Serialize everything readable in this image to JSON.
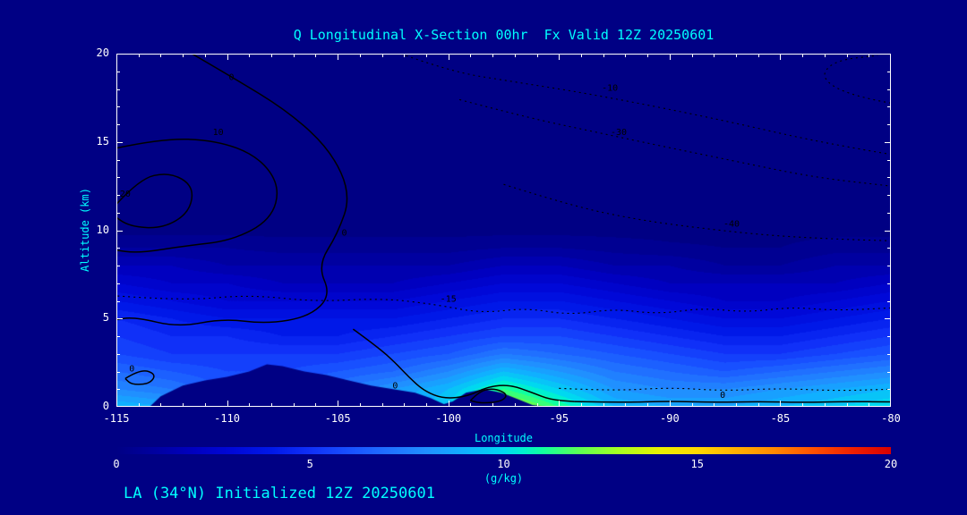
{
  "colors": {
    "background": "#000084",
    "accent_text": "#00ffff",
    "tick_text": "#ffffff",
    "axis": "#ffffff",
    "contour": "#000000"
  },
  "footer": {
    "text": "LA (34°N) Initialized 12Z 20250601"
  },
  "chart_data": {
    "type": "heatmap",
    "title": "Q Longitudinal X-Section 00hr  Fx Valid 12Z 20250601",
    "xlabel": "Longitude",
    "ylabel": "Altitude (km)",
    "units": "(g/kg)",
    "xlim": [
      -115,
      -80
    ],
    "ylim": [
      0,
      20
    ],
    "x_ticks": [
      -115,
      -110,
      -105,
      -100,
      -95,
      -90,
      -85,
      -80
    ],
    "x_tick_labels": [
      "-115",
      "-110",
      "-105",
      "-100",
      "-95",
      "-90",
      "-85",
      "-80"
    ],
    "y_ticks": [
      0,
      5,
      10,
      15,
      20
    ],
    "y_tick_labels": [
      "0",
      "5",
      "10",
      "15",
      "20"
    ],
    "colorbar_ticks": [
      0,
      5,
      10,
      15,
      20
    ],
    "colorbar_tick_labels": [
      "0",
      "5",
      "10",
      "15",
      "20"
    ],
    "quantize_step": 0.5,
    "colormap": {
      "min": 0,
      "max": 20,
      "stops": [
        [
          0,
          "#000084"
        ],
        [
          1,
          "#0000a0"
        ],
        [
          2,
          "#0000c0"
        ],
        [
          3,
          "#0008d8"
        ],
        [
          4,
          "#0018e8"
        ],
        [
          5,
          "#1030f8"
        ],
        [
          6,
          "#1850ff"
        ],
        [
          7,
          "#2070ff"
        ],
        [
          8,
          "#2090ff"
        ],
        [
          9,
          "#10b0ff"
        ],
        [
          10,
          "#00d8f0"
        ],
        [
          10.5,
          "#00f0d0"
        ],
        [
          11,
          "#10ffa0"
        ],
        [
          12,
          "#60ff50"
        ],
        [
          13,
          "#a8ff20"
        ],
        [
          14,
          "#e8f000"
        ],
        [
          15,
          "#ffd800"
        ],
        [
          16,
          "#ffb000"
        ],
        [
          17,
          "#ff8800"
        ],
        [
          18,
          "#ff5000"
        ],
        [
          19,
          "#f02000"
        ],
        [
          20,
          "#d80000"
        ]
      ]
    },
    "grid_lons": [
      -115,
      -112.5,
      -110,
      -107.5,
      -105,
      -102.5,
      -100,
      -97.5,
      -95,
      -92.5,
      -90,
      -87.5,
      -85,
      -82.5,
      -80
    ],
    "grid_alts": [
      0,
      1,
      2,
      3,
      4,
      5,
      6,
      7,
      8,
      9,
      10,
      12,
      20
    ],
    "values": [
      [
        9.5,
        9.0,
        7.5,
        7.5,
        8.0,
        9.0,
        10.0,
        13.5,
        11.5,
        9.5,
        9.0,
        9.0,
        9.5,
        10.0,
        10.5
      ],
      [
        8.0,
        7.5,
        6.5,
        6.5,
        7.5,
        8.5,
        9.5,
        11.5,
        10.0,
        8.5,
        8.0,
        8.0,
        8.5,
        9.0,
        9.5
      ],
      [
        7.0,
        6.5,
        6.0,
        6.0,
        6.5,
        7.0,
        8.0,
        9.5,
        8.5,
        7.5,
        7.0,
        6.5,
        7.0,
        7.5,
        8.0
      ],
      [
        6.0,
        5.5,
        5.5,
        5.5,
        5.5,
        6.0,
        6.5,
        7.5,
        7.0,
        6.5,
        6.0,
        5.5,
        5.5,
        6.0,
        6.5
      ],
      [
        5.5,
        5.0,
        5.0,
        4.5,
        4.5,
        5.0,
        5.5,
        6.0,
        6.0,
        5.5,
        5.0,
        4.5,
        4.5,
        5.0,
        5.5
      ],
      [
        5.0,
        4.5,
        4.0,
        4.0,
        4.0,
        4.0,
        4.5,
        5.0,
        5.0,
        4.5,
        4.0,
        3.5,
        3.5,
        4.0,
        4.5
      ],
      [
        4.0,
        3.5,
        3.0,
        3.0,
        3.0,
        3.0,
        3.5,
        4.0,
        4.0,
        3.5,
        3.0,
        2.5,
        2.5,
        3.0,
        3.5
      ],
      [
        3.0,
        2.5,
        2.5,
        2.0,
        2.0,
        2.0,
        2.5,
        3.0,
        3.0,
        2.5,
        2.0,
        2.0,
        2.0,
        2.0,
        2.5
      ],
      [
        2.0,
        2.0,
        1.5,
        1.5,
        1.5,
        1.5,
        1.5,
        2.0,
        2.0,
        1.5,
        1.5,
        1.0,
        1.0,
        1.5,
        1.5
      ],
      [
        1.0,
        1.0,
        1.0,
        0.8,
        0.8,
        0.8,
        0.8,
        1.0,
        1.0,
        0.8,
        0.6,
        0.5,
        0.5,
        0.8,
        0.8
      ],
      [
        0.3,
        0.3,
        0.3,
        0.3,
        0.3,
        0.3,
        0.3,
        0.3,
        0.3,
        0.3,
        0.3,
        0.3,
        0.3,
        0.3,
        0.3
      ],
      [
        0,
        0,
        0,
        0,
        0,
        0,
        0,
        0,
        0,
        0,
        0,
        0,
        0,
        0,
        0
      ],
      [
        0,
        0,
        0,
        0,
        0,
        0,
        0,
        0,
        0,
        0,
        0,
        0,
        0,
        0,
        0
      ]
    ],
    "terrain": [
      [
        -115,
        0
      ],
      [
        -113.5,
        0
      ],
      [
        -113,
        0.6
      ],
      [
        -112,
        1.2
      ],
      [
        -111,
        1.5
      ],
      [
        -110,
        1.7
      ],
      [
        -109,
        2.0
      ],
      [
        -108.2,
        2.4
      ],
      [
        -107.5,
        2.3
      ],
      [
        -106.5,
        2.0
      ],
      [
        -105.5,
        1.8
      ],
      [
        -104.5,
        1.5
      ],
      [
        -103.5,
        1.2
      ],
      [
        -102.5,
        1.0
      ],
      [
        -101.5,
        0.8
      ],
      [
        -100.8,
        0.5
      ],
      [
        -100.2,
        0.15
      ],
      [
        -99.8,
        0.3
      ],
      [
        -99.2,
        0.8
      ],
      [
        -98.4,
        1.0
      ],
      [
        -97.6,
        0.8
      ],
      [
        -96.8,
        0.4
      ],
      [
        -96.2,
        0.1
      ],
      [
        -95.5,
        0
      ],
      [
        -80,
        0
      ]
    ],
    "contours": [
      {
        "label": "0",
        "style": "solid",
        "label_positions": [
          [
            -109.8,
            18.5
          ],
          [
            -104.7,
            9.7
          ]
        ],
        "points": [
          [
            -112.0,
            20.3
          ],
          [
            -109.8,
            18.7
          ],
          [
            -107.2,
            16.7
          ],
          [
            -105.3,
            14.5
          ],
          [
            -104.4,
            12.0
          ],
          [
            -105.0,
            9.8
          ],
          [
            -105.9,
            8.0
          ],
          [
            -105.3,
            6.3
          ],
          [
            -106.3,
            5.1
          ],
          [
            -108.2,
            4.7
          ],
          [
            -110.2,
            5.0
          ],
          [
            -112.2,
            4.5
          ],
          [
            -114.2,
            5.1
          ],
          [
            -115.2,
            4.9
          ]
        ]
      },
      {
        "label": "10",
        "style": "solid",
        "label_positions": [
          [
            -110.4,
            15.4
          ]
        ],
        "points": [
          [
            -115.2,
            14.6
          ],
          [
            -113.0,
            15.2
          ],
          [
            -110.5,
            15.1
          ],
          [
            -108.6,
            14.2
          ],
          [
            -107.6,
            12.5
          ],
          [
            -108.0,
            10.6
          ],
          [
            -109.8,
            9.4
          ],
          [
            -112.0,
            9.1
          ],
          [
            -114.0,
            8.7
          ],
          [
            -115.2,
            8.9
          ]
        ]
      },
      {
        "label": "20",
        "style": "solid",
        "label_positions": [
          [
            -114.6,
            11.9
          ]
        ],
        "points": [
          [
            -115.2,
            11.2
          ],
          [
            -114.0,
            12.9
          ],
          [
            -112.6,
            13.3
          ],
          [
            -111.5,
            12.5
          ],
          [
            -111.7,
            11.0
          ],
          [
            -112.9,
            10.1
          ],
          [
            -114.4,
            10.2
          ],
          [
            -115.2,
            10.9
          ]
        ]
      },
      {
        "label": "0",
        "style": "solid",
        "label_positions": [
          [
            -114.3,
            2.0
          ]
        ],
        "points": [
          [
            -114.6,
            1.6
          ],
          [
            -113.9,
            2.15
          ],
          [
            -113.2,
            1.85
          ],
          [
            -113.5,
            1.3
          ],
          [
            -114.3,
            1.25
          ],
          [
            -114.6,
            1.6
          ]
        ]
      },
      {
        "label": "0",
        "style": "solid",
        "label_positions": [
          [
            -102.4,
            1.05
          ]
        ],
        "points": [
          [
            -104.3,
            4.4
          ],
          [
            -103.2,
            3.4
          ],
          [
            -102.4,
            2.5
          ],
          [
            -101.8,
            1.7
          ],
          [
            -101.1,
            0.9
          ],
          [
            -100.2,
            0.45
          ],
          [
            -99.1,
            0.6
          ],
          [
            -98.2,
            1.15
          ],
          [
            -97.2,
            1.25
          ],
          [
            -96.2,
            0.8
          ],
          [
            -95.4,
            0.4
          ],
          [
            -94.3,
            0.3
          ]
        ]
      },
      {
        "label": "0",
        "style": "solid",
        "label_positions": [
          [
            -87.6,
            0.5
          ]
        ],
        "points": [
          [
            -94.3,
            0.3
          ],
          [
            -92.0,
            0.25
          ],
          [
            -90.0,
            0.32
          ],
          [
            -88.0,
            0.25
          ],
          [
            -86.0,
            0.3
          ],
          [
            -84.0,
            0.25
          ],
          [
            -82.0,
            0.3
          ],
          [
            -80,
            0.28
          ]
        ]
      },
      {
        "label": "",
        "style": "solid",
        "label_positions": [],
        "points": [
          [
            -99.0,
            0.35
          ],
          [
            -98.6,
            0.9
          ],
          [
            -97.9,
            1.05
          ],
          [
            -97.3,
            0.7
          ],
          [
            -97.6,
            0.3
          ],
          [
            -98.5,
            0.2
          ],
          [
            -99.0,
            0.35
          ]
        ]
      },
      {
        "label": "-10",
        "style": "dotted",
        "label_positions": [
          [
            -92.7,
            17.9
          ]
        ],
        "points": [
          [
            -102.6,
            20.2
          ],
          [
            -100.0,
            19.0
          ],
          [
            -97.0,
            18.4
          ],
          [
            -94.0,
            17.8
          ],
          [
            -91.0,
            17.1
          ],
          [
            -87.5,
            16.2
          ],
          [
            -84.0,
            15.2
          ],
          [
            -81.0,
            14.5
          ],
          [
            -80,
            14.3
          ]
        ]
      },
      {
        "label": "-30",
        "style": "dotted",
        "label_positions": [
          [
            -92.3,
            15.4
          ]
        ],
        "points": [
          [
            -99.5,
            17.4
          ],
          [
            -96.5,
            16.4
          ],
          [
            -93.5,
            15.6
          ],
          [
            -90.5,
            14.8
          ],
          [
            -87.0,
            13.9
          ],
          [
            -83.5,
            13.0
          ],
          [
            -80,
            12.5
          ]
        ]
      },
      {
        "label": "-40",
        "style": "dotted",
        "label_positions": [
          [
            -87.2,
            10.2
          ]
        ],
        "points": [
          [
            -97.5,
            12.6
          ],
          [
            -94.5,
            11.4
          ],
          [
            -91.5,
            10.6
          ],
          [
            -88.5,
            10.1
          ],
          [
            -85.5,
            9.7
          ],
          [
            -82.5,
            9.5
          ],
          [
            -80,
            9.4
          ]
        ]
      },
      {
        "label": "-15",
        "style": "dotted",
        "label_positions": [
          [
            -100.0,
            5.95
          ]
        ],
        "points": [
          [
            -115.2,
            6.3
          ],
          [
            -112.0,
            6.0
          ],
          [
            -109.0,
            6.35
          ],
          [
            -106.0,
            5.95
          ],
          [
            -103.0,
            6.15
          ],
          [
            -100.6,
            5.8
          ],
          [
            -98.5,
            5.3
          ],
          [
            -96.5,
            5.6
          ],
          [
            -94.5,
            5.2
          ],
          [
            -92.5,
            5.55
          ],
          [
            -90.5,
            5.25
          ],
          [
            -88.5,
            5.6
          ],
          [
            -86.5,
            5.35
          ],
          [
            -84.5,
            5.65
          ],
          [
            -82.5,
            5.45
          ],
          [
            -80,
            5.6
          ]
        ]
      },
      {
        "label": "",
        "style": "dotted",
        "label_positions": [],
        "points": [
          [
            -95.0,
            1.05
          ],
          [
            -92.5,
            0.9
          ],
          [
            -90.0,
            1.1
          ],
          [
            -87.5,
            0.9
          ],
          [
            -85.0,
            1.05
          ],
          [
            -82.5,
            0.9
          ],
          [
            -80,
            1.0
          ]
        ]
      },
      {
        "label": "",
        "style": "dotted",
        "label_positions": [],
        "points": [
          [
            -80,
            17.2
          ],
          [
            -81.8,
            17.6
          ],
          [
            -83.2,
            18.6
          ],
          [
            -82.6,
            19.6
          ],
          [
            -80.6,
            19.9
          ]
        ]
      }
    ]
  }
}
